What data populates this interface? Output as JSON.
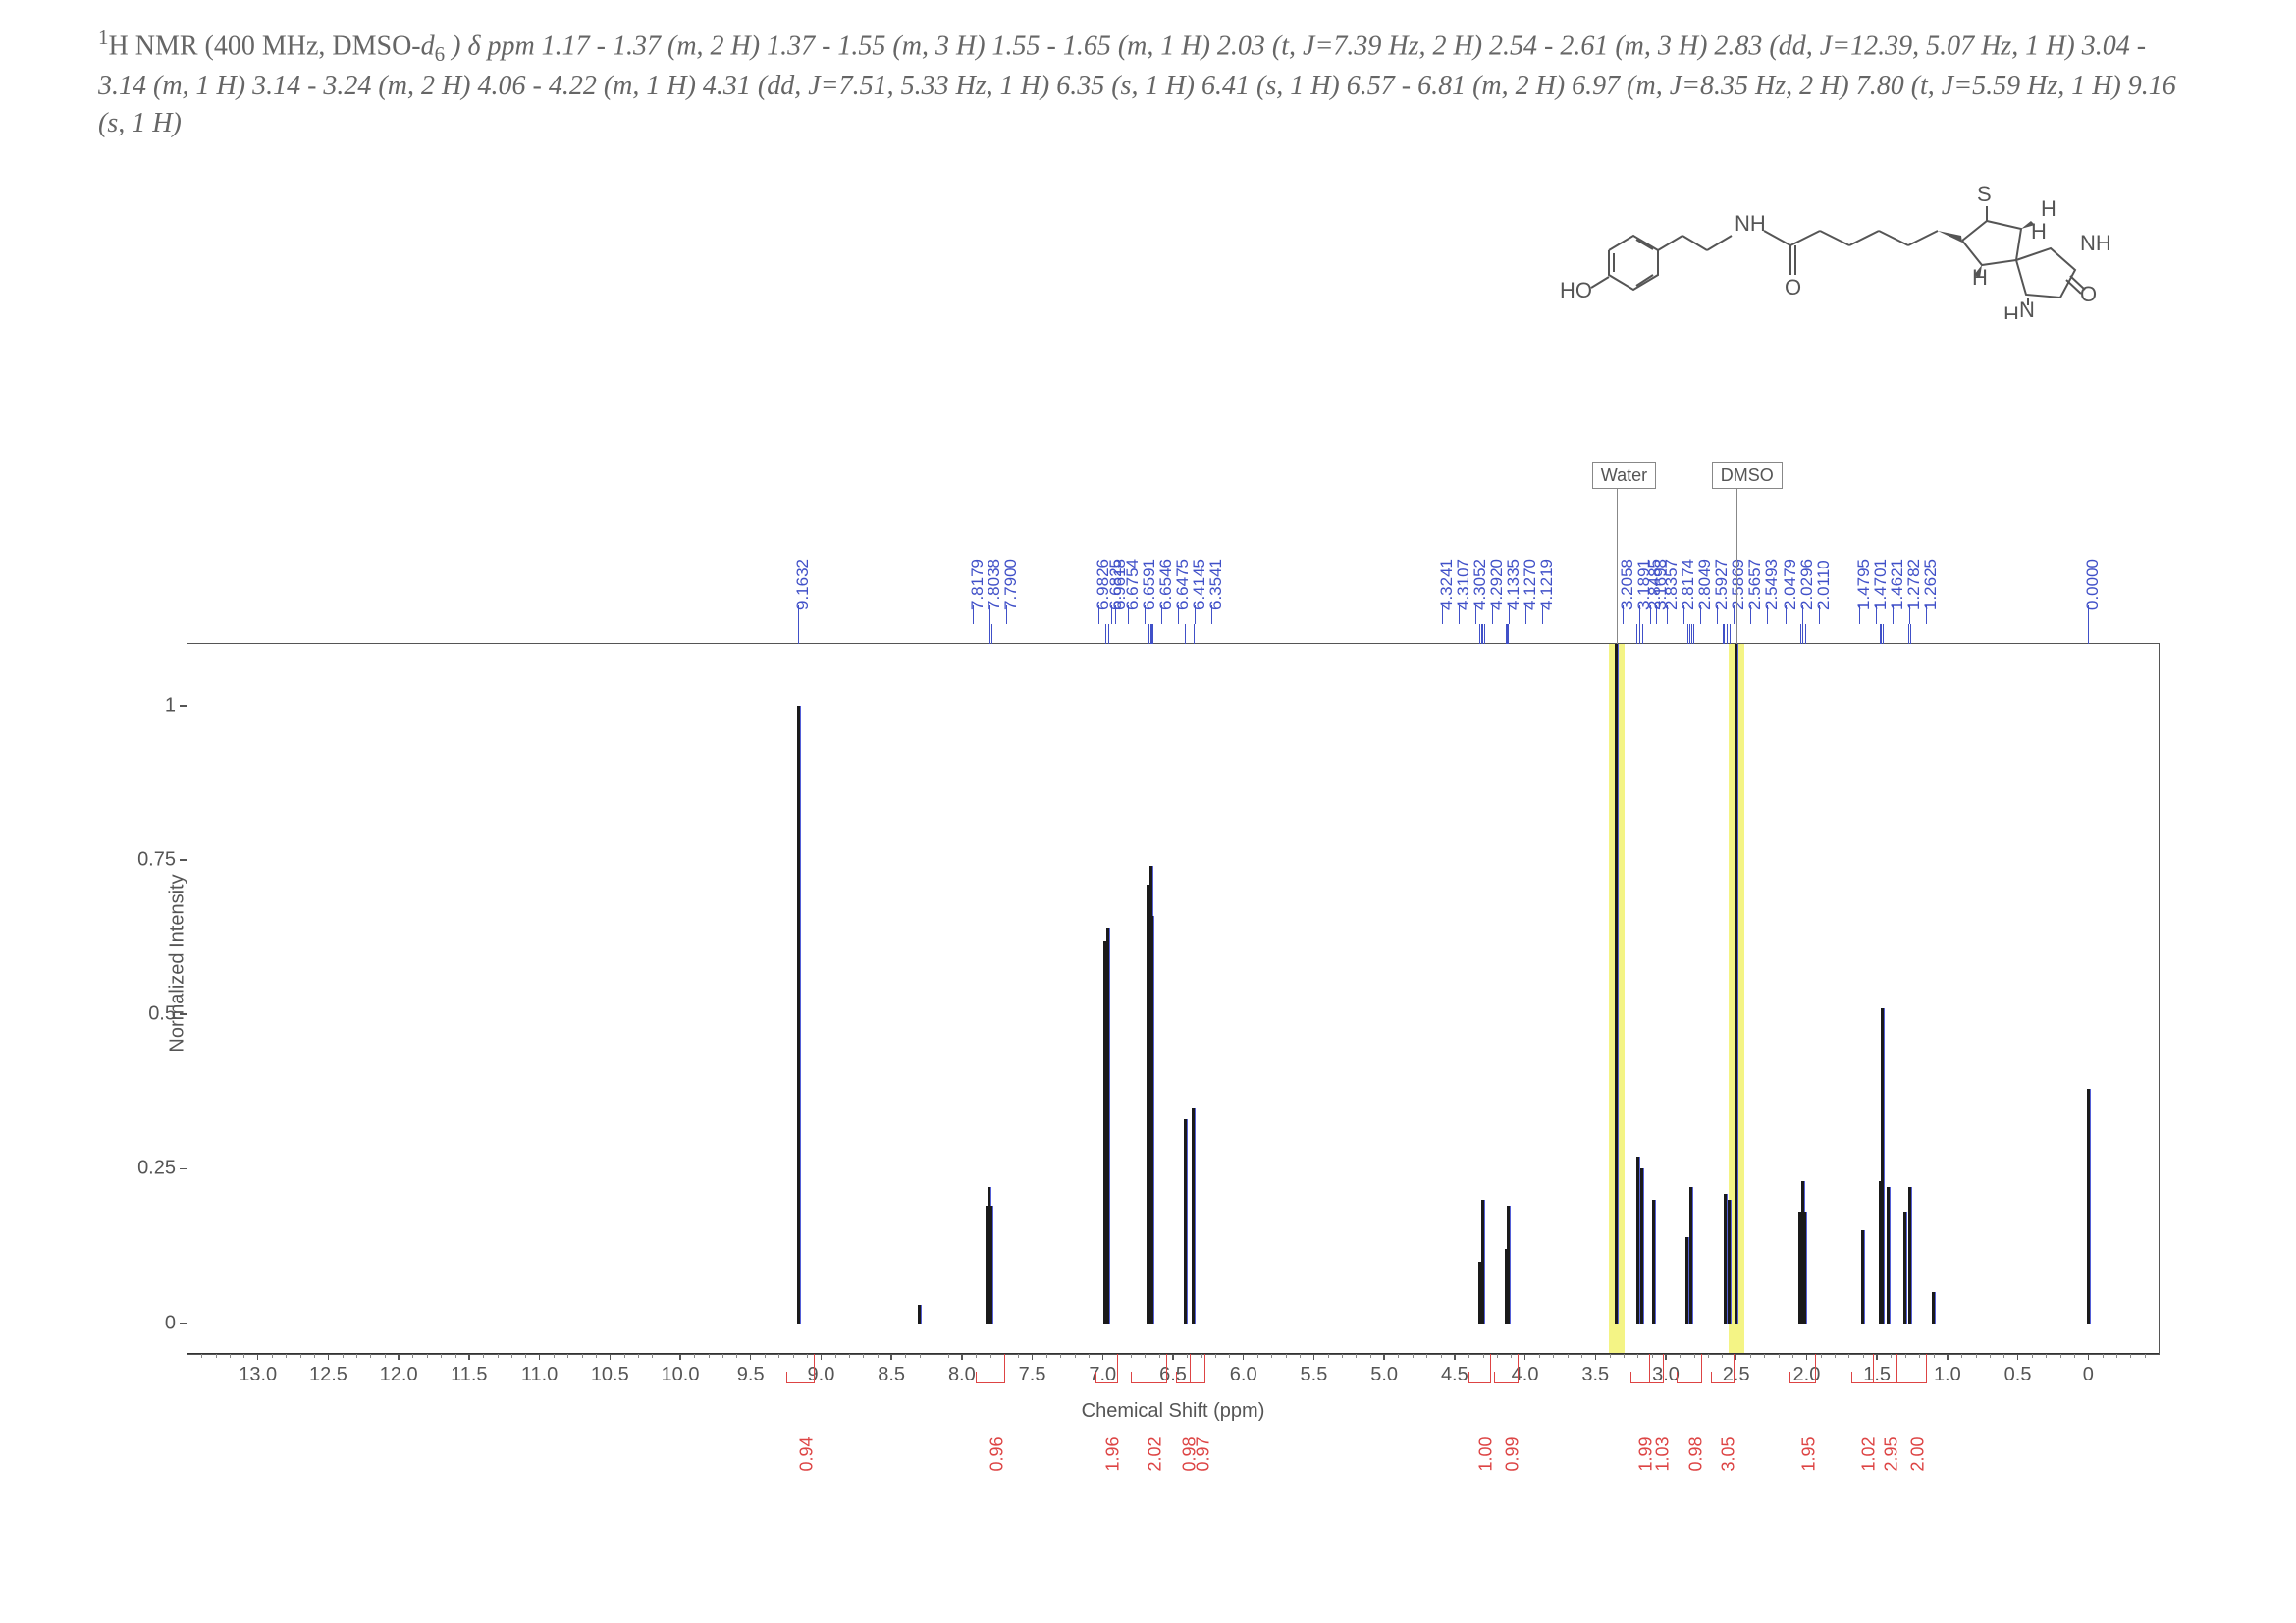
{
  "caption": {
    "prefix_super": "1",
    "text": "H NMR (400 MHz, DMSO-",
    "solvent_ital": "d",
    "solvent_sub": "6",
    "body": " ) δ ppm 1.17 - 1.37 (m, 2 H) 1.37 - 1.55 (m, 3 H) 1.55 - 1.65 (m, 1 H) 2.03 (t,  J=7.39 Hz, 2 H) 2.54 - 2.61 (m, 3 H) 2.83 (dd, J=12.39, 5.07 Hz, 1 H) 3.04 - 3.14 (m, 1 H) 3.14 - 3.24 (m, 2 H) 4.06 - 4.22 (m, 1 H) 4.31 (dd,  J=7.51, 5.33 Hz, 1 H) 6.35 (s, 1 H) 6.41 (s, 1 H) 6.57 - 6.81 (m, 2 H) 6.97 (m, J=8.35 Hz, 2 H) 7.80 (t, J=5.59 Hz, 1 H) 9.16 (s, 1 H)"
  },
  "structure_labels": [
    "HO",
    "NH",
    "O",
    "S",
    "H",
    "NH",
    "H",
    "N",
    "H",
    "O",
    "H"
  ],
  "chart": {
    "ylabel": "Normalized Intensity",
    "xlabel": "Chemical Shift (ppm)",
    "xlim": [
      -0.5,
      13.5
    ],
    "ylim": [
      -0.05,
      1.1
    ],
    "yticks": [
      0,
      0.25,
      0.5,
      0.75,
      1.0
    ],
    "xticks": [
      0,
      0.5,
      1.0,
      1.5,
      2.0,
      2.5,
      3.0,
      3.5,
      4.0,
      4.5,
      5.0,
      5.5,
      6.0,
      6.5,
      7.0,
      7.5,
      8.0,
      8.5,
      9.0,
      9.5,
      10.0,
      10.5,
      11.0,
      11.5,
      12.0,
      12.5,
      13.0
    ],
    "xtick_labels": [
      "0",
      "0.5",
      "1.0",
      "1.5",
      "2.0",
      "2.5",
      "3.0",
      "3.5",
      "4.0",
      "4.5",
      "5.0",
      "5.5",
      "6.0",
      "6.5",
      "7.0",
      "7.5",
      "8.0",
      "8.5",
      "9.0",
      "9.5",
      "10.0",
      "10.5",
      "11.0",
      "11.5",
      "12.0",
      "12.5",
      "13.0"
    ],
    "solvent_tags": [
      {
        "label": "Water",
        "ppm": 3.35
      },
      {
        "label": "DMSO",
        "ppm": 2.5
      }
    ],
    "peak_labels": [
      {
        "ppm": 9.1632,
        "txt": "9.1632"
      },
      {
        "ppm": 7.8179,
        "txt": "7.8179"
      },
      {
        "ppm": 7.8038,
        "txt": "7.8038"
      },
      {
        "ppm": 7.79,
        "txt": "7.7900"
      },
      {
        "ppm": 6.9826,
        "txt": "6.9826"
      },
      {
        "ppm": 6.9618,
        "txt": "6.9618"
      },
      {
        "ppm": 6.6825,
        "txt": "6.6825"
      },
      {
        "ppm": 6.6754,
        "txt": "6.6754"
      },
      {
        "ppm": 6.6591,
        "txt": "6.6591"
      },
      {
        "ppm": 6.6546,
        "txt": "6.6546"
      },
      {
        "ppm": 6.6475,
        "txt": "6.6475"
      },
      {
        "ppm": 6.4145,
        "txt": "6.4145"
      },
      {
        "ppm": 6.3541,
        "txt": "6.3541"
      },
      {
        "ppm": 4.3241,
        "txt": "4.3241"
      },
      {
        "ppm": 4.3107,
        "txt": "4.3107"
      },
      {
        "ppm": 4.3052,
        "txt": "4.3052"
      },
      {
        "ppm": 4.292,
        "txt": "4.2920"
      },
      {
        "ppm": 4.1335,
        "txt": "4.1335"
      },
      {
        "ppm": 4.127,
        "txt": "4.1270"
      },
      {
        "ppm": 4.1219,
        "txt": "4.1219"
      },
      {
        "ppm": 3.2058,
        "txt": "3.2058"
      },
      {
        "ppm": 3.1891,
        "txt": "3.1891"
      },
      {
        "ppm": 3.1698,
        "txt": "3.1698"
      },
      {
        "ppm": 2.8485,
        "txt": "2.8485"
      },
      {
        "ppm": 2.8357,
        "txt": "2.8357"
      },
      {
        "ppm": 2.8174,
        "txt": "2.8174"
      },
      {
        "ppm": 2.8049,
        "txt": "2.8049"
      },
      {
        "ppm": 2.5927,
        "txt": "2.5927"
      },
      {
        "ppm": 2.5869,
        "txt": "2.5869"
      },
      {
        "ppm": 2.5657,
        "txt": "2.5657"
      },
      {
        "ppm": 2.5493,
        "txt": "2.5493"
      },
      {
        "ppm": 2.0479,
        "txt": "2.0479"
      },
      {
        "ppm": 2.0296,
        "txt": "2.0296"
      },
      {
        "ppm": 2.011,
        "txt": "2.0110"
      },
      {
        "ppm": 1.4795,
        "txt": "1.4795"
      },
      {
        "ppm": 1.4701,
        "txt": "1.4701"
      },
      {
        "ppm": 1.4621,
        "txt": "1.4621"
      },
      {
        "ppm": 1.2782,
        "txt": "1.2782"
      },
      {
        "ppm": 1.2625,
        "txt": "1.2625"
      },
      {
        "ppm": 0.0,
        "txt": "0.0000"
      }
    ],
    "peaks": [
      {
        "ppm": 9.163,
        "h": 1.0
      },
      {
        "ppm": 8.3,
        "h": 0.03
      },
      {
        "ppm": 7.818,
        "h": 0.19
      },
      {
        "ppm": 7.804,
        "h": 0.22
      },
      {
        "ppm": 7.79,
        "h": 0.19
      },
      {
        "ppm": 6.983,
        "h": 0.62
      },
      {
        "ppm": 6.962,
        "h": 0.64
      },
      {
        "ppm": 6.68,
        "h": 0.71
      },
      {
        "ppm": 6.66,
        "h": 0.74
      },
      {
        "ppm": 6.65,
        "h": 0.66
      },
      {
        "ppm": 6.415,
        "h": 0.33
      },
      {
        "ppm": 6.354,
        "h": 0.35
      },
      {
        "ppm": 4.324,
        "h": 0.1
      },
      {
        "ppm": 4.3,
        "h": 0.2
      },
      {
        "ppm": 4.134,
        "h": 0.12
      },
      {
        "ppm": 4.122,
        "h": 0.19
      },
      {
        "ppm": 3.35,
        "h": 1.15
      },
      {
        "ppm": 3.2,
        "h": 0.27
      },
      {
        "ppm": 3.17,
        "h": 0.25
      },
      {
        "ppm": 3.09,
        "h": 0.2
      },
      {
        "ppm": 2.85,
        "h": 0.14
      },
      {
        "ppm": 2.82,
        "h": 0.22
      },
      {
        "ppm": 2.58,
        "h": 0.21
      },
      {
        "ppm": 2.55,
        "h": 0.2
      },
      {
        "ppm": 2.5,
        "h": 1.15
      },
      {
        "ppm": 2.048,
        "h": 0.18
      },
      {
        "ppm": 2.03,
        "h": 0.23
      },
      {
        "ppm": 2.011,
        "h": 0.18
      },
      {
        "ppm": 1.6,
        "h": 0.15
      },
      {
        "ppm": 1.48,
        "h": 0.23
      },
      {
        "ppm": 1.46,
        "h": 0.51
      },
      {
        "ppm": 1.42,
        "h": 0.22
      },
      {
        "ppm": 1.3,
        "h": 0.18
      },
      {
        "ppm": 1.27,
        "h": 0.22
      },
      {
        "ppm": 1.1,
        "h": 0.05
      },
      {
        "ppm": 0.0,
        "h": 0.38
      }
    ],
    "integrals": [
      {
        "ppm_from": 9.25,
        "ppm_to": 9.05,
        "val": "0.94"
      },
      {
        "ppm_from": 7.9,
        "ppm_to": 7.7,
        "val": "0.96"
      },
      {
        "ppm_from": 7.05,
        "ppm_to": 6.9,
        "val": "1.96"
      },
      {
        "ppm_from": 6.8,
        "ppm_to": 6.55,
        "val": "2.02"
      },
      {
        "ppm_from": 6.48,
        "ppm_to": 6.38,
        "val": "0.98"
      },
      {
        "ppm_from": 6.38,
        "ppm_to": 6.28,
        "val": "0.97"
      },
      {
        "ppm_from": 4.4,
        "ppm_to": 4.25,
        "val": "1.00"
      },
      {
        "ppm_from": 4.22,
        "ppm_to": 4.05,
        "val": "0.99"
      },
      {
        "ppm_from": 3.25,
        "ppm_to": 3.12,
        "val": "1.99"
      },
      {
        "ppm_from": 3.12,
        "ppm_to": 3.02,
        "val": "1.03"
      },
      {
        "ppm_from": 2.92,
        "ppm_to": 2.75,
        "val": "0.98"
      },
      {
        "ppm_from": 2.68,
        "ppm_to": 2.52,
        "val": "3.05"
      },
      {
        "ppm_from": 2.12,
        "ppm_to": 1.94,
        "val": "1.95"
      },
      {
        "ppm_from": 1.68,
        "ppm_to": 1.53,
        "val": "1.02"
      },
      {
        "ppm_from": 1.53,
        "ppm_to": 1.36,
        "val": "2.95"
      },
      {
        "ppm_from": 1.36,
        "ppm_to": 1.15,
        "val": "2.00"
      }
    ],
    "colors": {
      "axis": "#555555",
      "peak": "#1a1a1a",
      "peak_label": "#4050c8",
      "integral": "#d44444",
      "highlight": "#f4f485",
      "background": "#ffffff"
    },
    "font": {
      "tick_size_pt": 15,
      "label_size_pt": 15,
      "peak_label_size_pt": 13,
      "integral_label_size_pt": 14
    }
  }
}
